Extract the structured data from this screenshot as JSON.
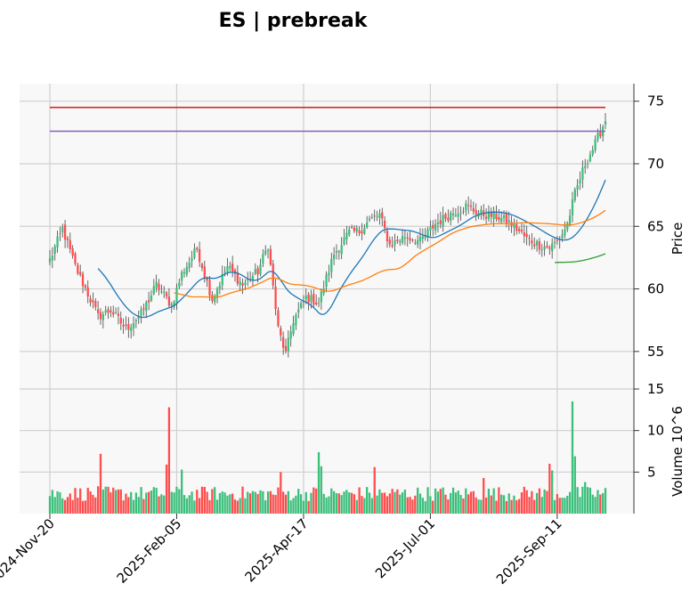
{
  "chart_data": {
    "type": "candlestick",
    "title": "ES | prebreak",
    "x_tick_labels": [
      "2024-Nov-20",
      "2025-Feb-05",
      "2025-Apr-17",
      "2025-Jul-01",
      "2025-Sep-11"
    ],
    "x_tick_indices": [
      0,
      50,
      100,
      150,
      200
    ],
    "n_bars": 220,
    "price_panel": {
      "ylabel": "Price",
      "ylim": [
        52,
        76.4
      ],
      "yticks": [
        55,
        60,
        65,
        70,
        75
      ],
      "hlines": [
        {
          "value": 74.5,
          "color": "#d62728"
        },
        {
          "value": 72.6,
          "color": "#9467bd"
        }
      ],
      "moving_averages": [
        {
          "window": 20,
          "color": "#1f77b4"
        },
        {
          "window": 50,
          "color": "#ff7f0e"
        },
        {
          "window": 200,
          "color": "#2ca02c"
        }
      ],
      "close_anchors": [
        [
          0,
          62.3
        ],
        [
          5,
          64.8
        ],
        [
          10,
          61.8
        ],
        [
          15,
          59.6
        ],
        [
          19,
          57.8
        ],
        [
          24,
          58.3
        ],
        [
          30,
          56.8
        ],
        [
          36,
          58.0
        ],
        [
          42,
          60.3
        ],
        [
          48,
          58.7
        ],
        [
          52,
          61.2
        ],
        [
          58,
          63.2
        ],
        [
          64,
          59.2
        ],
        [
          70,
          61.8
        ],
        [
          76,
          60.3
        ],
        [
          82,
          61.4
        ],
        [
          86,
          63.5
        ],
        [
          90,
          56.8
        ],
        [
          93,
          54.8
        ],
        [
          96,
          57.5
        ],
        [
          101,
          59.3
        ],
        [
          106,
          58.9
        ],
        [
          112,
          62.8
        ],
        [
          118,
          64.5
        ],
        [
          122,
          64.6
        ],
        [
          126,
          65.5
        ],
        [
          130,
          65.9
        ],
        [
          134,
          63.5
        ],
        [
          140,
          64.2
        ],
        [
          146,
          63.8
        ],
        [
          152,
          65.2
        ],
        [
          158,
          66.0
        ],
        [
          164,
          66.6
        ],
        [
          170,
          66.0
        ],
        [
          176,
          65.8
        ],
        [
          182,
          65.2
        ],
        [
          188,
          64.0
        ],
        [
          193,
          63.5
        ],
        [
          197,
          63.3
        ],
        [
          201,
          64.0
        ],
        [
          204,
          65.2
        ],
        [
          207,
          67.6
        ],
        [
          211,
          70.0
        ],
        [
          215,
          71.6
        ],
        [
          219,
          73.5
        ]
      ]
    },
    "volume_panel": {
      "ylabel": "Volume  10^6",
      "ylim": [
        0,
        15
      ],
      "yticks": [
        5,
        10,
        15
      ],
      "spikes": [
        [
          20,
          7.2
        ],
        [
          46,
          5.9
        ],
        [
          47,
          12.8
        ],
        [
          52,
          5.3
        ],
        [
          91,
          5.0
        ],
        [
          106,
          7.4
        ],
        [
          107,
          5.7
        ],
        [
          128,
          5.6
        ],
        [
          171,
          4.3
        ],
        [
          197,
          6.0
        ],
        [
          198,
          5.2
        ],
        [
          206,
          13.5
        ],
        [
          207,
          6.9
        ],
        [
          211,
          3.8
        ]
      ]
    },
    "up_color": "#3bbf7b",
    "down_color": "#ff4d4d",
    "grid": true
  }
}
